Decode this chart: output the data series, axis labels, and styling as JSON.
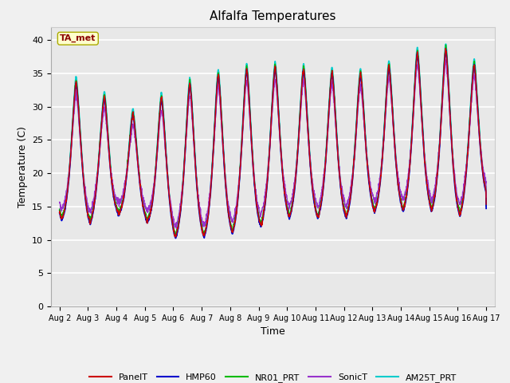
{
  "title": "Alfalfa Temperatures",
  "xlabel": "Time",
  "ylabel": "Temperature (C)",
  "ylim": [
    0,
    42
  ],
  "yticks": [
    0,
    5,
    10,
    15,
    20,
    25,
    30,
    35,
    40
  ],
  "annotation_text": "TA_met",
  "annotation_color": "#8B0000",
  "annotation_bg": "#FFFFCC",
  "annotation_border": "#AAAA00",
  "series_colors": {
    "PanelT": "#CC0000",
    "HMP60": "#0000CC",
    "NR01_PRT": "#00BB00",
    "SonicT": "#9933CC",
    "AM25T_PRT": "#00CCCC"
  },
  "fig_bg": "#F0F0F0",
  "plot_bg": "#E8E8E8",
  "grid_color": "#FFFFFF",
  "line_width": 1.0,
  "num_points": 2000
}
